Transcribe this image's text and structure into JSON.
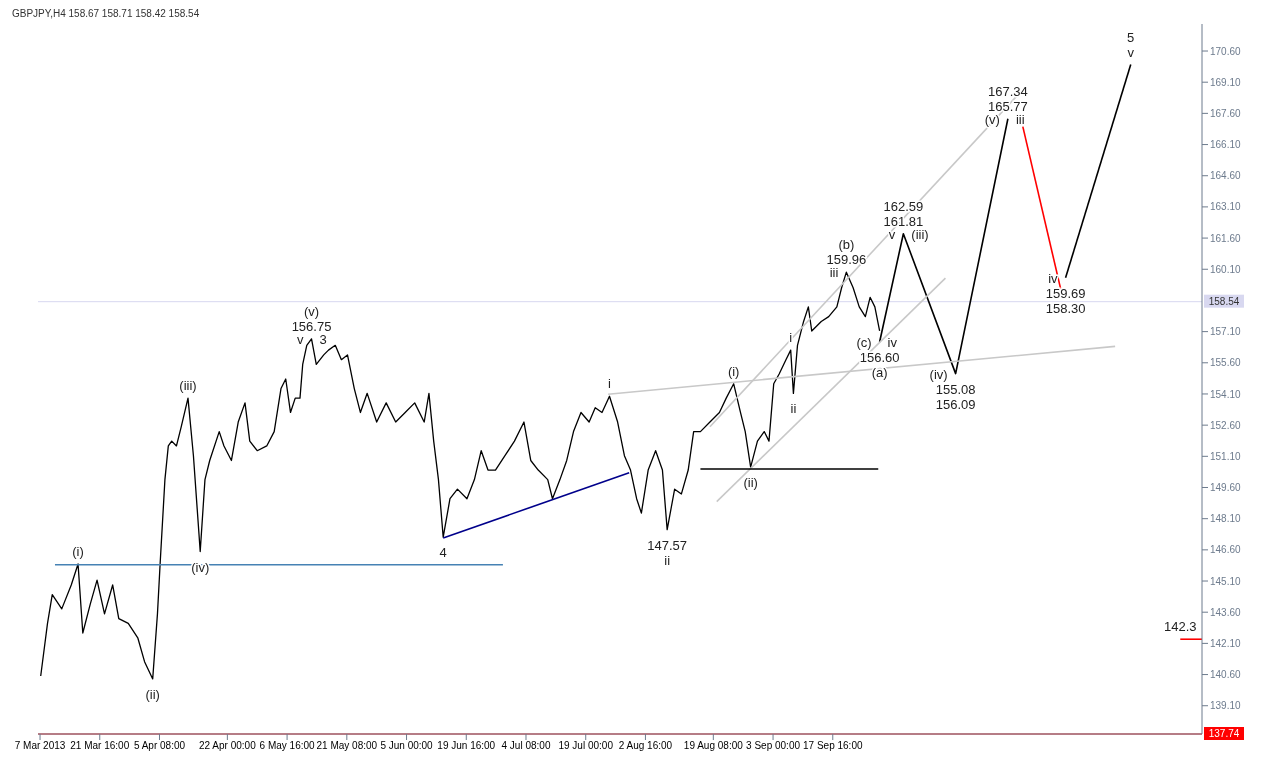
{
  "chart_data": {
    "type": "line",
    "title": "GBPJPY,H4 158.67 158.71 158.42 158.54",
    "xlim": [
      "2013-03-06T12:00",
      "2013-12-17T08:00"
    ],
    "xticks": [
      {
        "value": "2013-03-07",
        "label": "7 Mar 2013"
      },
      {
        "value": "2013-03-21T16:00",
        "label": "21 Mar 16:00"
      },
      {
        "value": "2013-04-05T08:00",
        "label": "5 Apr 08:00"
      },
      {
        "value": "2013-04-22T00:00",
        "label": "22 Apr 00:00"
      },
      {
        "value": "2013-05-06T16:00",
        "label": "6 May 16:00"
      },
      {
        "value": "2013-05-21T08:00",
        "label": "21 May 08:00"
      },
      {
        "value": "2013-06-05T00:00",
        "label": "5 Jun 00:00"
      },
      {
        "value": "2013-06-19T16:00",
        "label": "19 Jun 16:00"
      },
      {
        "value": "2013-07-04T08:00",
        "label": "4 Jul 08:00"
      },
      {
        "value": "2013-07-19T00:00",
        "label": "19 Jul 00:00"
      },
      {
        "value": "2013-08-02T16:00",
        "label": "2 Aug 16:00"
      },
      {
        "value": "2013-08-19T08:00",
        "label": "19 Aug 08:00"
      },
      {
        "value": "2013-09-03T00:00",
        "label": "3 Sep 00:00"
      },
      {
        "value": "2013-09-17T16:00",
        "label": "17 Sep 16:00"
      }
    ],
    "ylim": [
      137.74,
      171.9
    ],
    "yticks": [
      {
        "value": 139.1,
        "label": "139.10"
      },
      {
        "value": 140.6,
        "label": "140.60"
      },
      {
        "value": 142.1,
        "label": "142.10"
      },
      {
        "value": 143.6,
        "label": "143.60"
      },
      {
        "value": 145.1,
        "label": "145.10"
      },
      {
        "value": 146.6,
        "label": "146.60"
      },
      {
        "value": 148.1,
        "label": "148.10"
      },
      {
        "value": 149.6,
        "label": "149.60"
      },
      {
        "value": 151.1,
        "label": "151.10"
      },
      {
        "value": 152.6,
        "label": "152.60"
      },
      {
        "value": 154.1,
        "label": "154.10"
      },
      {
        "value": 155.6,
        "label": "155.60"
      },
      {
        "value": 157.1,
        "label": "157.10"
      },
      {
        "value": 160.1,
        "label": "160.10"
      },
      {
        "value": 161.6,
        "label": "161.60"
      },
      {
        "value": 163.1,
        "label": "163.10"
      },
      {
        "value": 164.6,
        "label": "164.60"
      },
      {
        "value": 166.1,
        "label": "166.10"
      },
      {
        "value": 167.6,
        "label": "167.60"
      },
      {
        "value": 169.1,
        "label": "169.10"
      },
      {
        "value": 170.6,
        "label": "170.60"
      }
    ],
    "marker": "none",
    "line_style": "solid",
    "series": [
      {
        "color": "#000000",
        "x": [
          "2013-03-07T04:00",
          "2013-03-08T20:00",
          "2013-03-10T00:00",
          "2013-03-12T08:00",
          "2013-03-14T16:00",
          "2013-03-16T08:00",
          "2013-03-17T12:00",
          "2013-03-19T08:00",
          "2013-03-21T00:00",
          "2013-03-22T20:00",
          "2013-03-24T20:00",
          "2013-03-26T08:00",
          "2013-03-28T16:00",
          "2013-03-31T00:00",
          "2013-04-01T16:00",
          "2013-04-03T16:00",
          "2013-04-04T20:00",
          "2013-04-05T12:00",
          "2013-04-06T16:00",
          "2013-04-07T12:00",
          "2013-04-08T08:00",
          "2013-04-09T12:00",
          "2013-04-10T16:00",
          "2013-04-12T08:00",
          "2013-04-13T16:00",
          "2013-04-15T08:00",
          "2013-04-16T12:00",
          "2013-04-17T16:00",
          "2013-04-20T00:00",
          "2013-04-21T04:00",
          "2013-04-23T00:00",
          "2013-04-24T16:00",
          "2013-04-26T08:00",
          "2013-04-27T12:00",
          "2013-04-29T08:00",
          "2013-05-01T16:00",
          "2013-05-03T12:00",
          "2013-05-05T04:00",
          "2013-05-06T08:00",
          "2013-05-07T12:00",
          "2013-05-08T16:00",
          "2013-05-09T20:00",
          "2013-05-10T12:00",
          "2013-05-11T12:00",
          "2013-05-12T16:00",
          "2013-05-13T20:00",
          "2013-05-15T16:00",
          "2013-05-16T20:00",
          "2013-05-18T12:00",
          "2013-05-20T00:00",
          "2013-05-21T12:00",
          "2013-05-23T04:00",
          "2013-05-24T16:00",
          "2013-05-26T08:00",
          "2013-05-28T16:00",
          "2013-05-31T00:00",
          "2013-06-02T08:00",
          "2013-06-04T16:00",
          "2013-06-07T00:00",
          "2013-06-09T08:00",
          "2013-06-10T12:00",
          "2013-06-11T16:00",
          "2013-06-12T20:00",
          "2013-06-14T00:00",
          "2013-06-15T16:00",
          "2013-06-17T12:00",
          "2013-06-19T20:00",
          "2013-06-21T16:00",
          "2013-06-23T08:00",
          "2013-06-25T00:00",
          "2013-06-26T20:00",
          "2013-06-29T04:00",
          "2013-07-01T12:00",
          "2013-07-03T20:00",
          "2013-07-05T12:00",
          "2013-07-07T08:00",
          "2013-07-09T16:00",
          "2013-07-10T20:00",
          "2013-07-12T16:00",
          "2013-07-14T08:00",
          "2013-07-16T00:00",
          "2013-07-17T20:00",
          "2013-07-19T20:00",
          "2013-07-21T08:00",
          "2013-07-23T00:00",
          "2013-07-24T20:00",
          "2013-07-26T20:00",
          "2013-07-28T12:00",
          "2013-07-30T00:00",
          "2013-07-31T12:00",
          "2013-08-01T16:00",
          "2013-08-03T08:00",
          "2013-08-05T04:00",
          "2013-08-06T20:00",
          "2013-08-08T00:00",
          "2013-08-09T20:00",
          "2013-08-11T12:00",
          "2013-08-13T04:00",
          "2013-08-14T12:00",
          "2013-08-16T04:00",
          "2013-08-18T12:00",
          "2013-08-20T20:00",
          "2013-08-22T12:00",
          "2013-08-24T08:00",
          "2013-08-26T00:00",
          "2013-08-27T04:00",
          "2013-08-28T12:00",
          "2013-08-30T04:00",
          "2013-08-31T20:00",
          "2013-09-02T00:00",
          "2013-09-03T04:00",
          "2013-09-04T12:00",
          "2013-09-06T04:00",
          "2013-09-07T08:00",
          "2013-09-08T00:00",
          "2013-09-09T00:00",
          "2013-09-10T12:00",
          "2013-09-11T16:00",
          "2013-09-12T12:00",
          "2013-09-13T16:00",
          "2013-09-14T20:00",
          "2013-09-16T16:00",
          "2013-09-18T16:00",
          "2013-09-19T20:00",
          "2013-09-21T00:00",
          "2013-09-22T16:00",
          "2013-09-24T04:00",
          "2013-09-25T16:00",
          "2013-09-26T20:00",
          "2013-09-28T00:00",
          "2013-09-29T04:00"
        ],
        "values": [
          140.53,
          143.06,
          144.45,
          143.76,
          144.91,
          145.92,
          142.6,
          143.99,
          145.14,
          143.52,
          144.91,
          143.29,
          143.06,
          142.37,
          141.22,
          140.39,
          143.52,
          145.97,
          149.98,
          151.6,
          151.83,
          151.6,
          152.52,
          153.9,
          151.13,
          146.52,
          149.98,
          150.9,
          152.29,
          151.6,
          150.9,
          152.75,
          153.67,
          151.83,
          151.37,
          151.6,
          152.29,
          154.36,
          154.82,
          153.21,
          153.9,
          153.9,
          155.52,
          156.44,
          156.75,
          155.52,
          155.98,
          156.21,
          156.44,
          155.75,
          155.98,
          154.36,
          153.21,
          154.13,
          152.75,
          153.67,
          152.75,
          153.21,
          153.67,
          152.75,
          154.13,
          151.83,
          149.98,
          147.21,
          149.06,
          149.52,
          149.06,
          149.98,
          151.37,
          150.44,
          150.44,
          151.13,
          151.83,
          152.75,
          150.9,
          150.44,
          149.98,
          149.06,
          149.98,
          150.9,
          152.29,
          153.21,
          152.75,
          153.44,
          153.21,
          153.99,
          152.75,
          151.13,
          150.44,
          149.06,
          148.37,
          150.44,
          151.37,
          150.44,
          147.57,
          149.52,
          149.29,
          150.44,
          152.29,
          152.29,
          152.75,
          153.21,
          153.9,
          154.59,
          153.21,
          152.29,
          150.58,
          151.83,
          152.29,
          151.83,
          154.59,
          155.06,
          155.75,
          156.21,
          154.13,
          156.44,
          157.59,
          158.29,
          157.13,
          157.36,
          157.59,
          157.82,
          158.29,
          159.21,
          159.96,
          159.21,
          158.29,
          157.82,
          158.75,
          158.29,
          157.13
        ]
      },
      {
        "color": "#000000",
        "x": [
          "2013-09-29T04:00",
          "2013-10-05T00:00",
          "2013-10-17T20:00",
          "2013-10-30T16:00"
        ],
        "values": [
          156.6,
          161.81,
          155.08,
          167.34
        ]
      },
      {
        "color": "#ff0000",
        "x": [
          "2013-11-03T08:00",
          "2013-11-12T16:00"
        ],
        "values": [
          166.96,
          159.12
        ]
      },
      {
        "color": "#000000",
        "x": [
          "2013-11-13T20:00",
          "2013-11-29T20:00"
        ],
        "values": [
          159.69,
          169.95
        ]
      },
      {
        "color": "#c8c8c8",
        "x": [
          "2013-07-24T12:00",
          "2013-11-26T00:00"
        ],
        "values": [
          154.09,
          156.39
        ]
      },
      {
        "color": "#c8c8c8",
        "x": [
          "2013-08-18T12:00",
          "2013-11-01T20:00"
        ],
        "values": [
          152.52,
          168.43
        ]
      },
      {
        "color": "#c8c8c8",
        "x": [
          "2013-08-20T04:00",
          "2013-10-15T08:00"
        ],
        "values": [
          148.92,
          159.67
        ]
      },
      {
        "color": "#00008b",
        "x": [
          "2013-06-14T00:00",
          "2013-07-29T16:00"
        ],
        "values": [
          147.17,
          150.31
        ]
      },
      {
        "color": "#000000",
        "x": [
          "2013-08-16T04:00",
          "2013-09-28T20:00"
        ],
        "values": [
          150.49,
          150.49
        ]
      },
      {
        "color": "#4682b4",
        "x": [
          "2013-03-10T16:00",
          "2013-06-28T16:00"
        ],
        "values": [
          145.88,
          145.88
        ]
      },
      {
        "color": "#ff0000",
        "x": [
          "2013-12-12T00:00",
          "2013-12-17T08:00"
        ],
        "values": [
          142.3,
          142.3
        ]
      }
    ],
    "ref_lines": [
      {
        "axis": "y",
        "value": 158.54,
        "label": "158.54",
        "color": "#d8d8f0"
      },
      {
        "axis": "y",
        "value": 137.74,
        "label": "137.74",
        "color": "#ff0000"
      }
    ],
    "annotations": [
      {
        "text": "156.75",
        "x": "2013-05-12T16:00",
        "y": 156.75
      },
      {
        "text": "(v)",
        "x": "2013-05-12T16:00",
        "y": 156.75
      },
      {
        "text": "v",
        "x": "2013-05-12T16:00",
        "y": 156.75
      },
      {
        "text": "3",
        "x": "2013-05-12T16:00",
        "y": 156.75
      },
      {
        "text": "(iii)",
        "x": "2013-04-12T08:00",
        "y": 153.9
      },
      {
        "text": "(i)",
        "x": "2013-03-16T08:00",
        "y": 145.92
      },
      {
        "text": "(iv)",
        "x": "2013-04-15T08:00",
        "y": 146.52
      },
      {
        "text": "(ii)",
        "x": "2013-04-03T16:00",
        "y": 140.39
      },
      {
        "text": "4",
        "x": "2013-06-14T00:00",
        "y": 147.21
      },
      {
        "text": "i",
        "x": "2013-07-24T20:00",
        "y": 153.99
      },
      {
        "text": "147.57",
        "x": "2013-08-08T00:00",
        "y": 147.57
      },
      {
        "text": "ii",
        "x": "2013-08-08T00:00",
        "y": 147.57
      },
      {
        "text": "(i)",
        "x": "2013-08-24T08:00",
        "y": 154.59
      },
      {
        "text": "(ii)",
        "x": "2013-08-28T12:00",
        "y": 150.58
      },
      {
        "text": "i",
        "x": "2013-09-07T08:00",
        "y": 156.21
      },
      {
        "text": "ii",
        "x": "2013-09-08T00:00",
        "y": 154.13
      },
      {
        "text": "159.96",
        "x": "2013-09-21T00:00",
        "y": 159.96
      },
      {
        "text": "(b)",
        "x": "2013-09-21T00:00",
        "y": 159.96
      },
      {
        "text": "iii",
        "x": "2013-09-21T00:00",
        "y": 159.96
      },
      {
        "text": "156.60",
        "x": "2013-09-29T04:00",
        "y": 156.6
      },
      {
        "text": "(a)",
        "x": "2013-09-29T04:00",
        "y": 156.6
      },
      {
        "text": "(c)",
        "x": "2013-09-29T04:00",
        "y": 156.6
      },
      {
        "text": "iv",
        "x": "2013-09-29T04:00",
        "y": 156.6
      },
      {
        "text": "161.81",
        "x": "2013-10-05T00:00",
        "y": 161.81
      },
      {
        "text": "162.59",
        "x": "2013-10-05T00:00",
        "y": 161.81
      },
      {
        "text": "v",
        "x": "2013-10-05T00:00",
        "y": 161.81
      },
      {
        "text": "(iii)",
        "x": "2013-10-05T00:00",
        "y": 161.81
      },
      {
        "text": "155.08",
        "x": "2013-10-17T20:00",
        "y": 155.08
      },
      {
        "text": "156.09",
        "x": "2013-10-17T20:00",
        "y": 155.08
      },
      {
        "text": "(iv)",
        "x": "2013-10-17T20:00",
        "y": 155.08
      },
      {
        "text": "165.77",
        "x": "2013-10-30T16:00",
        "y": 167.34
      },
      {
        "text": "167.34",
        "x": "2013-10-30T16:00",
        "y": 167.34
      },
      {
        "text": "(v)",
        "x": "2013-10-30T16:00",
        "y": 167.34
      },
      {
        "text": "iii",
        "x": "2013-10-30T16:00",
        "y": 167.34
      },
      {
        "text": "159.69",
        "x": "2013-11-13T20:00",
        "y": 159.69
      },
      {
        "text": "158.30",
        "x": "2013-11-13T20:00",
        "y": 159.69
      },
      {
        "text": "iv",
        "x": "2013-11-13T20:00",
        "y": 159.69
      },
      {
        "text": "v",
        "x": "2013-11-29T20:00",
        "y": 169.95
      },
      {
        "text": "5",
        "x": "2013-11-29T20:00",
        "y": 169.95
      },
      {
        "text": "142.3",
        "x": "2013-12-12T00:00",
        "y": 142.3
      }
    ]
  }
}
